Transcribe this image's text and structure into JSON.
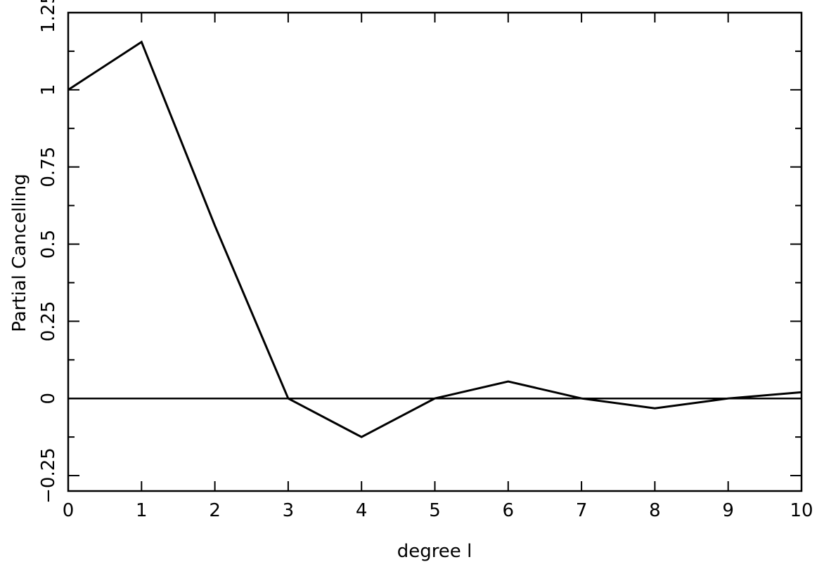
{
  "chart_data": {
    "type": "line",
    "xlabel": "degree l",
    "ylabel": "Partial Cancelling",
    "xlim": [
      0,
      10
    ],
    "ylim": [
      -0.3,
      1.25
    ],
    "x_ticks": [
      0,
      1,
      2,
      3,
      4,
      5,
      6,
      7,
      8,
      9,
      10
    ],
    "x_tick_labels": [
      "0",
      "1",
      "2",
      "3",
      "4",
      "5",
      "6",
      "7",
      "8",
      "9",
      "10"
    ],
    "y_ticks": [
      -0.25,
      0,
      0.25,
      0.5,
      0.75,
      1,
      1.25
    ],
    "y_tick_labels": [
      "−0.25",
      "0",
      "0.25",
      "0.5",
      "0.75",
      "1",
      "1.25"
    ],
    "y_minor_ticks": [
      -0.125,
      0.125,
      0.375,
      0.625,
      0.875,
      1.125
    ],
    "grid": false,
    "reference_line": {
      "y": 0
    },
    "series": [
      {
        "x": [
          0,
          1,
          2,
          3,
          4,
          5,
          6,
          7,
          8,
          9,
          10
        ],
        "y": [
          1.0,
          1.155,
          0.56,
          0.0,
          -0.125,
          0.0,
          0.055,
          0.0,
          -0.032,
          0.0,
          0.02
        ],
        "color": "#000000"
      }
    ]
  }
}
